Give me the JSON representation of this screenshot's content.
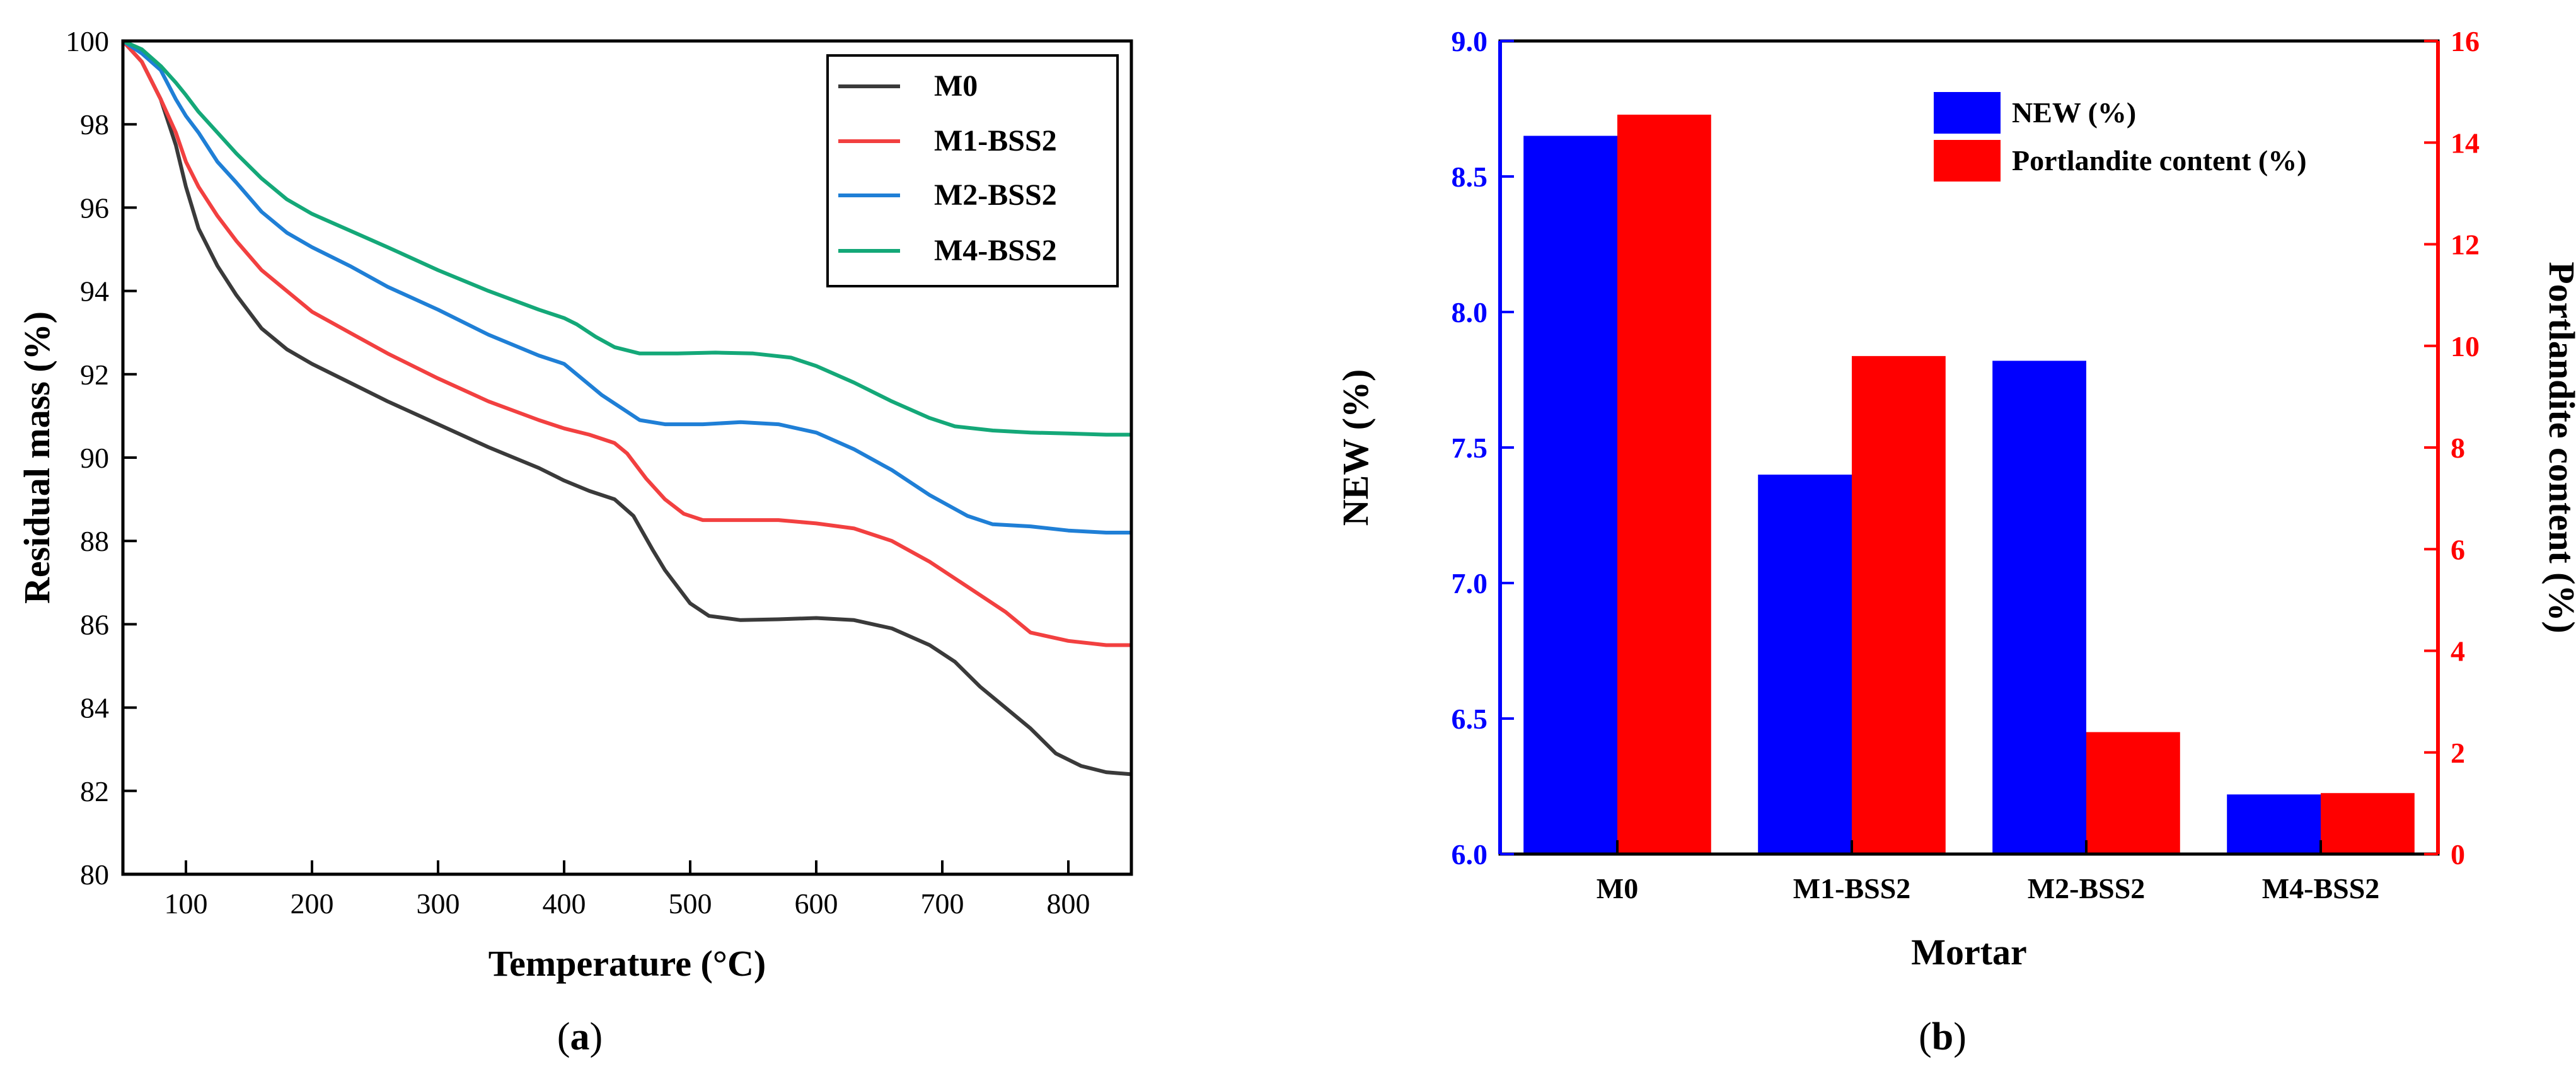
{
  "panels": [
    {
      "label": "(a)",
      "letter": "a"
    },
    {
      "label": "(b)",
      "letter": "b"
    }
  ],
  "colors": {
    "M0": "#3a3a3a",
    "M1-BSS2": "#f24040",
    "M2-BSS2": "#1f7fd6",
    "M4-BSS2": "#14a878",
    "NEW": "#0000ff",
    "Portlandite": "#ff0000"
  },
  "chart_data": [
    {
      "type": "line",
      "title": "",
      "xlabel": "Temperature (°C)",
      "ylabel": "Residual mass (%)",
      "xlim": [
        50,
        850
      ],
      "ylim": [
        80,
        100
      ],
      "xticks": [
        100,
        200,
        300,
        400,
        500,
        600,
        700,
        800
      ],
      "yticks": [
        80,
        82,
        84,
        86,
        88,
        90,
        92,
        94,
        96,
        98,
        100
      ],
      "legend_position": "top-right",
      "grid": false,
      "series": [
        {
          "name": "M0",
          "points": [
            [
              50,
              100
            ],
            [
              65,
              99.5
            ],
            [
              80,
              98.6
            ],
            [
              92,
              97.5
            ],
            [
              100,
              96.5
            ],
            [
              110,
              95.5
            ],
            [
              125,
              94.6
            ],
            [
              140,
              93.9
            ],
            [
              160,
              93.1
            ],
            [
              180,
              92.6
            ],
            [
              200,
              92.25
            ],
            [
              230,
              91.8
            ],
            [
              260,
              91.35
            ],
            [
              300,
              90.8
            ],
            [
              340,
              90.25
            ],
            [
              380,
              89.75
            ],
            [
              400,
              89.45
            ],
            [
              420,
              89.2
            ],
            [
              440,
              89.0
            ],
            [
              455,
              88.6
            ],
            [
              470,
              87.8
            ],
            [
              480,
              87.3
            ],
            [
              490,
              86.9
            ],
            [
              500,
              86.5
            ],
            [
              515,
              86.2
            ],
            [
              540,
              86.1
            ],
            [
              570,
              86.12
            ],
            [
              600,
              86.15
            ],
            [
              630,
              86.1
            ],
            [
              660,
              85.9
            ],
            [
              690,
              85.5
            ],
            [
              710,
              85.1
            ],
            [
              730,
              84.5
            ],
            [
              750,
              84.0
            ],
            [
              770,
              83.5
            ],
            [
              790,
              82.9
            ],
            [
              810,
              82.6
            ],
            [
              830,
              82.45
            ],
            [
              850,
              82.4
            ]
          ]
        },
        {
          "name": "M1-BSS2",
          "points": [
            [
              50,
              100
            ],
            [
              65,
              99.5
            ],
            [
              80,
              98.6
            ],
            [
              92,
              97.8
            ],
            [
              100,
              97.1
            ],
            [
              110,
              96.5
            ],
            [
              125,
              95.8
            ],
            [
              140,
              95.2
            ],
            [
              160,
              94.5
            ],
            [
              180,
              94.0
            ],
            [
              200,
              93.5
            ],
            [
              230,
              93.0
            ],
            [
              260,
              92.5
            ],
            [
              300,
              91.9
            ],
            [
              340,
              91.35
            ],
            [
              380,
              90.9
            ],
            [
              400,
              90.7
            ],
            [
              420,
              90.55
            ],
            [
              440,
              90.35
            ],
            [
              450,
              90.1
            ],
            [
              465,
              89.5
            ],
            [
              480,
              89.0
            ],
            [
              495,
              88.65
            ],
            [
              510,
              88.5
            ],
            [
              540,
              88.5
            ],
            [
              570,
              88.5
            ],
            [
              600,
              88.42
            ],
            [
              630,
              88.3
            ],
            [
              660,
              88.0
            ],
            [
              690,
              87.5
            ],
            [
              720,
              86.9
            ],
            [
              750,
              86.3
            ],
            [
              770,
              85.8
            ],
            [
              800,
              85.6
            ],
            [
              830,
              85.5
            ],
            [
              850,
              85.5
            ]
          ]
        },
        {
          "name": "M2-BSS2",
          "points": [
            [
              50,
              100
            ],
            [
              65,
              99.7
            ],
            [
              80,
              99.3
            ],
            [
              92,
              98.6
            ],
            [
              100,
              98.2
            ],
            [
              110,
              97.8
            ],
            [
              125,
              97.1
            ],
            [
              140,
              96.6
            ],
            [
              160,
              95.9
            ],
            [
              180,
              95.4
            ],
            [
              200,
              95.05
            ],
            [
              230,
              94.6
            ],
            [
              260,
              94.1
            ],
            [
              300,
              93.55
            ],
            [
              340,
              92.95
            ],
            [
              380,
              92.45
            ],
            [
              400,
              92.25
            ],
            [
              410,
              92.0
            ],
            [
              430,
              91.5
            ],
            [
              450,
              91.1
            ],
            [
              460,
              90.9
            ],
            [
              480,
              90.8
            ],
            [
              510,
              90.8
            ],
            [
              540,
              90.85
            ],
            [
              570,
              90.8
            ],
            [
              600,
              90.6
            ],
            [
              630,
              90.2
            ],
            [
              660,
              89.7
            ],
            [
              690,
              89.1
            ],
            [
              720,
              88.6
            ],
            [
              740,
              88.4
            ],
            [
              770,
              88.35
            ],
            [
              800,
              88.25
            ],
            [
              830,
              88.2
            ],
            [
              850,
              88.2
            ]
          ]
        },
        {
          "name": "M4-BSS2",
          "points": [
            [
              50,
              100
            ],
            [
              65,
              99.8
            ],
            [
              80,
              99.4
            ],
            [
              92,
              99.0
            ],
            [
              100,
              98.7
            ],
            [
              110,
              98.3
            ],
            [
              125,
              97.8
            ],
            [
              140,
              97.3
            ],
            [
              160,
              96.7
            ],
            [
              180,
              96.2
            ],
            [
              200,
              95.85
            ],
            [
              230,
              95.45
            ],
            [
              260,
              95.05
            ],
            [
              300,
              94.5
            ],
            [
              340,
              94.0
            ],
            [
              380,
              93.55
            ],
            [
              400,
              93.35
            ],
            [
              410,
              93.2
            ],
            [
              425,
              92.9
            ],
            [
              440,
              92.65
            ],
            [
              460,
              92.5
            ],
            [
              490,
              92.5
            ],
            [
              520,
              92.52
            ],
            [
              550,
              92.5
            ],
            [
              580,
              92.4
            ],
            [
              600,
              92.2
            ],
            [
              630,
              91.8
            ],
            [
              660,
              91.35
            ],
            [
              690,
              90.95
            ],
            [
              710,
              90.75
            ],
            [
              740,
              90.65
            ],
            [
              770,
              90.6
            ],
            [
              800,
              90.58
            ],
            [
              830,
              90.55
            ],
            [
              850,
              90.55
            ]
          ]
        }
      ]
    },
    {
      "type": "bar",
      "title": "",
      "xlabel": "Mortar",
      "ylabel": "NEW (%)",
      "y2label": "Portlandite content (%)",
      "categories": [
        "M0",
        "M1-BSS2",
        "M2-BSS2",
        "M4-BSS2"
      ],
      "ylim": [
        6.0,
        9.0
      ],
      "y2lim": [
        0,
        16
      ],
      "yticks": [
        "6.0",
        "6.5",
        "7.0",
        "7.5",
        "8.0",
        "8.5",
        "9.0"
      ],
      "y2ticks": [
        0,
        2,
        4,
        6,
        8,
        10,
        12,
        14,
        16
      ],
      "legend_position": "top-right",
      "grid": false,
      "series": [
        {
          "name": "NEW (%)",
          "axis": "left",
          "values": [
            8.65,
            7.4,
            7.82,
            6.22
          ]
        },
        {
          "name": "Portlandite content (%)",
          "axis": "right",
          "values": [
            14.55,
            9.8,
            2.4,
            1.2
          ]
        }
      ]
    }
  ]
}
